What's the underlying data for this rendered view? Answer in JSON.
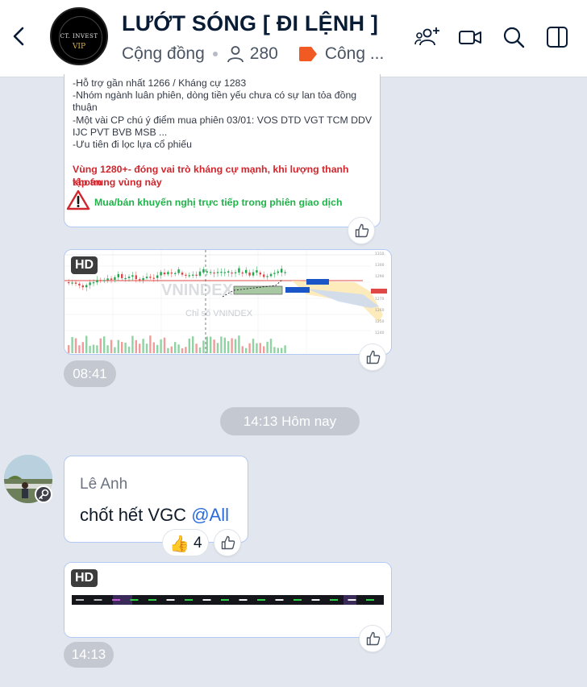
{
  "header": {
    "title": "LƯỚT SÓNG [ ĐI LỆNH ]",
    "type": "Cộng đồng",
    "member_count": "280",
    "category": "Công ...",
    "group_avatar_line1": "CT. INVEST",
    "group_avatar_line2": "VIP",
    "icons": [
      "back-arrow-icon",
      "add-member-icon",
      "video-call-icon",
      "search-icon",
      "sidebar-panel-icon"
    ]
  },
  "messages": {
    "analysis": {
      "lines": [
        "-Hỗ trợ gần nhất 1266 / Kháng cự 1283",
        "-Nhóm ngành luân phiên, dòng tiền yếu chưa có sự lan tỏa đồng",
        "thuận",
        "-Một vài CP chú ý điểm mua phiên 03/01: VOS DTD VGT TCM DDV",
        "IJC PVT BVB MSB ...",
        "-Ưu tiên đi lọc lựa cổ phiếu"
      ],
      "red_lines": [
        "Vùng 1280+- đóng vai trò kháng cự mạnh, khi lượng thanh khoản",
        "tập trung vùng này"
      ],
      "green_line": "Mua/bán khuyến nghị trực tiếp trong phiên giao dịch",
      "warn_color": "#d0262d"
    },
    "chart_image": {
      "badge": "HD",
      "watermark": "VNINDEX",
      "caption": "Chỉ số VNINDEX",
      "time": "08:41"
    },
    "day_separator": "14:13 Hôm nay",
    "text_message": {
      "sender": "Lê Anh",
      "text": "chốt hết VGC ",
      "mention": "@All",
      "reaction_emoji": "👍",
      "reaction_count": "4"
    },
    "table_image": {
      "badge": "HD",
      "time": "14:13"
    }
  },
  "colors": {
    "accent": "#2a6bdc",
    "card_border": "#b2c9f3",
    "background": "#e2e6ee",
    "tag_orange": "#f15a22"
  }
}
